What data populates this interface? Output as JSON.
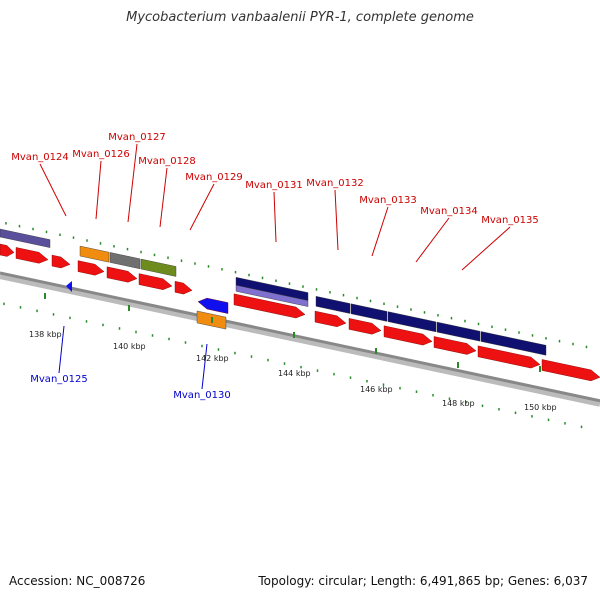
{
  "title": "Mycobacterium vanbaalenii PYR-1, complete genome",
  "accession": "Accession: NC_008726",
  "summary": "Topology: circular; Length: 6,491,865 bp; Genes: 6,037",
  "scale_labels": [
    "138 kbp",
    "140 kbp",
    "142 kbp",
    "144 kbp",
    "146 kbp",
    "148 kbp",
    "150 kbp"
  ],
  "genes_forward": [
    {
      "label": "Mvan_0124",
      "color": "#cc0000"
    },
    {
      "label": "Mvan_0126",
      "color": "#cc0000"
    },
    {
      "label": "Mvan_0127",
      "color": "#cc0000"
    },
    {
      "label": "Mvan_0128",
      "color": "#cc0000"
    },
    {
      "label": "Mvan_0129",
      "color": "#cc0000"
    },
    {
      "label": "Mvan_0131",
      "color": "#cc0000"
    },
    {
      "label": "Mvan_0132",
      "color": "#cc0000"
    },
    {
      "label": "Mvan_0133",
      "color": "#cc0000"
    },
    {
      "label": "Mvan_0134",
      "color": "#cc0000"
    },
    {
      "label": "Mvan_0135",
      "color": "#cc0000"
    }
  ],
  "genes_reverse": [
    {
      "label": "Mvan_0125",
      "color": "#0000cc"
    },
    {
      "label": "Mvan_0130",
      "color": "#0000cc"
    }
  ],
  "colors": {
    "cds": "#ee1111",
    "cog_navy": "#101070",
    "cog_slate": "#5a4f9a",
    "cog_orange": "#f08c10",
    "cog_gray": "#707070",
    "cog_olive": "#6e8c1e",
    "cog_lavender": "#8070d0",
    "backbone": "#888888",
    "tick": "#2a8a2a"
  }
}
